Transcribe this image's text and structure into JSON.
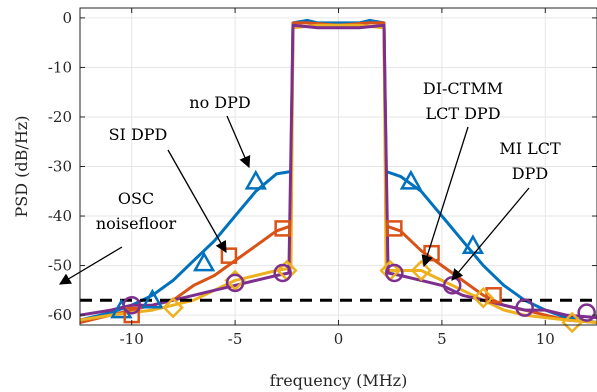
{
  "chart_data": {
    "type": "line",
    "xlabel": "frequency (MHz)",
    "ylabel": "PSD (dB/Hz)",
    "xlim": [
      -12.5,
      12.5
    ],
    "ylim": [
      -62,
      2
    ],
    "xticks": [
      -10,
      -5,
      0,
      5,
      10
    ],
    "yticks": [
      0,
      -10,
      -20,
      -30,
      -40,
      -50,
      -60
    ],
    "grid": true,
    "legend": "none",
    "series": [
      {
        "name": "no DPD",
        "color": "#0072BD",
        "marker": "triangle",
        "x": [
          -12.5,
          -11,
          -10,
          -9,
          -8,
          -7,
          -6,
          -5,
          -4,
          -3,
          -2.3,
          -2.2,
          -1.5,
          -1,
          0,
          1,
          1.5,
          2.2,
          2.3,
          3,
          4,
          5,
          6,
          7,
          8,
          9,
          10,
          11,
          12.5
        ],
        "y": [
          -61,
          -59.5,
          -58,
          -56,
          -53,
          -49,
          -45,
          -40,
          -35,
          -31.5,
          -31,
          -1,
          -0.5,
          -1,
          -1,
          -1,
          -0.5,
          -1,
          -31,
          -32,
          -35,
          -40,
          -45,
          -50,
          -54,
          -57,
          -59,
          -60.5,
          -61.5
        ]
      },
      {
        "name": "SI DPD",
        "color": "#D95319",
        "marker": "square",
        "x": [
          -12.5,
          -11,
          -10,
          -9,
          -8,
          -7,
          -6,
          -5,
          -4,
          -3,
          -2.3,
          -2.2,
          -1.5,
          0,
          1.5,
          2.2,
          2.3,
          3,
          4,
          5,
          6,
          7,
          8,
          9,
          10,
          11,
          12.5
        ],
        "y": [
          -61.5,
          -60,
          -59,
          -58,
          -57,
          -54,
          -52,
          -49,
          -46,
          -43,
          -42,
          -1,
          -1,
          -1.5,
          -1,
          -1,
          -42,
          -43,
          -47,
          -50,
          -53,
          -56,
          -58,
          -59,
          -60,
          -61,
          -61.5
        ]
      },
      {
        "name": "DI-CTMM LCT DPD",
        "color": "#EDB120",
        "marker": "diamond",
        "x": [
          -12.5,
          -11,
          -10,
          -9,
          -8,
          -7,
          -6,
          -5,
          -4,
          -3,
          -2.3,
          -2.2,
          -1,
          0,
          1,
          2.2,
          2.3,
          3,
          4,
          5,
          6,
          7,
          8,
          9,
          10,
          11,
          12.5
        ],
        "y": [
          -61,
          -60,
          -59.5,
          -59,
          -58,
          -57,
          -55,
          -53,
          -52,
          -51,
          -50.5,
          -2,
          -1.5,
          -1.5,
          -1.5,
          -2,
          -51,
          -51,
          -51,
          -53,
          -55,
          -57,
          -59,
          -60,
          -60.5,
          -61,
          -61.5
        ]
      },
      {
        "name": "MI LCT DPD",
        "color": "#7E2F8E",
        "marker": "circle",
        "x": [
          -12.5,
          -11,
          -10,
          -9,
          -8,
          -7,
          -6,
          -5,
          -4,
          -3,
          -2.4,
          -2.2,
          -1,
          0,
          1,
          2.2,
          2.4,
          3,
          4,
          5,
          6,
          7,
          8,
          9,
          10,
          11,
          12.5
        ],
        "y": [
          -60,
          -59,
          -58,
          -58,
          -57,
          -56,
          -55,
          -54,
          -53,
          -52,
          -51.5,
          -1.5,
          -2,
          -2,
          -2,
          -1.5,
          -51.5,
          -52,
          -53,
          -54,
          -56,
          -57,
          -58,
          -59,
          -59,
          -60,
          -60.5
        ]
      },
      {
        "name": "OSC noisefloor",
        "color": "#000000",
        "style": "dashed",
        "x": [
          -12.5,
          12.5
        ],
        "y": [
          -57,
          -57
        ]
      }
    ],
    "markers": {
      "triangle": [
        [
          -10.5,
          -59
        ],
        [
          -9,
          -57
        ],
        [
          -6.5,
          -49.5
        ],
        [
          -4,
          -33
        ],
        [
          3.5,
          -33
        ],
        [
          6.5,
          -46
        ]
      ],
      "square": [
        [
          -10,
          -60
        ],
        [
          -5.3,
          -48
        ],
        [
          -2.7,
          -42.5
        ],
        [
          2.7,
          -42.5
        ],
        [
          4.5,
          -47.5
        ],
        [
          7.5,
          -56
        ]
      ],
      "diamond": [
        [
          -8,
          -58.5
        ],
        [
          -5,
          -53
        ],
        [
          -2.5,
          -51
        ],
        [
          2.5,
          -51
        ],
        [
          4,
          -51
        ],
        [
          7,
          -56.5
        ],
        [
          11.3,
          -61.5
        ]
      ],
      "circle": [
        [
          -10,
          -58
        ],
        [
          -5,
          -53.5
        ],
        [
          -2.7,
          -51.5
        ],
        [
          2.7,
          -51.5
        ],
        [
          5.5,
          -54
        ],
        [
          9,
          -58.5
        ],
        [
          12,
          -59.5
        ]
      ]
    },
    "annotations": [
      {
        "text": "no DPD",
        "lines": [
          "no DPD"
        ]
      },
      {
        "text": "SI DPD",
        "lines": [
          "SI DPD"
        ]
      },
      {
        "text": "OSC noisefloor",
        "lines": [
          "OSC",
          "noisefloor"
        ]
      },
      {
        "text": "DI-CTMM LCT DPD",
        "lines": [
          "DI-CTMM",
          "LCT DPD"
        ]
      },
      {
        "text": "MI LCT DPD",
        "lines": [
          "MI LCT",
          "DPD"
        ]
      }
    ]
  }
}
